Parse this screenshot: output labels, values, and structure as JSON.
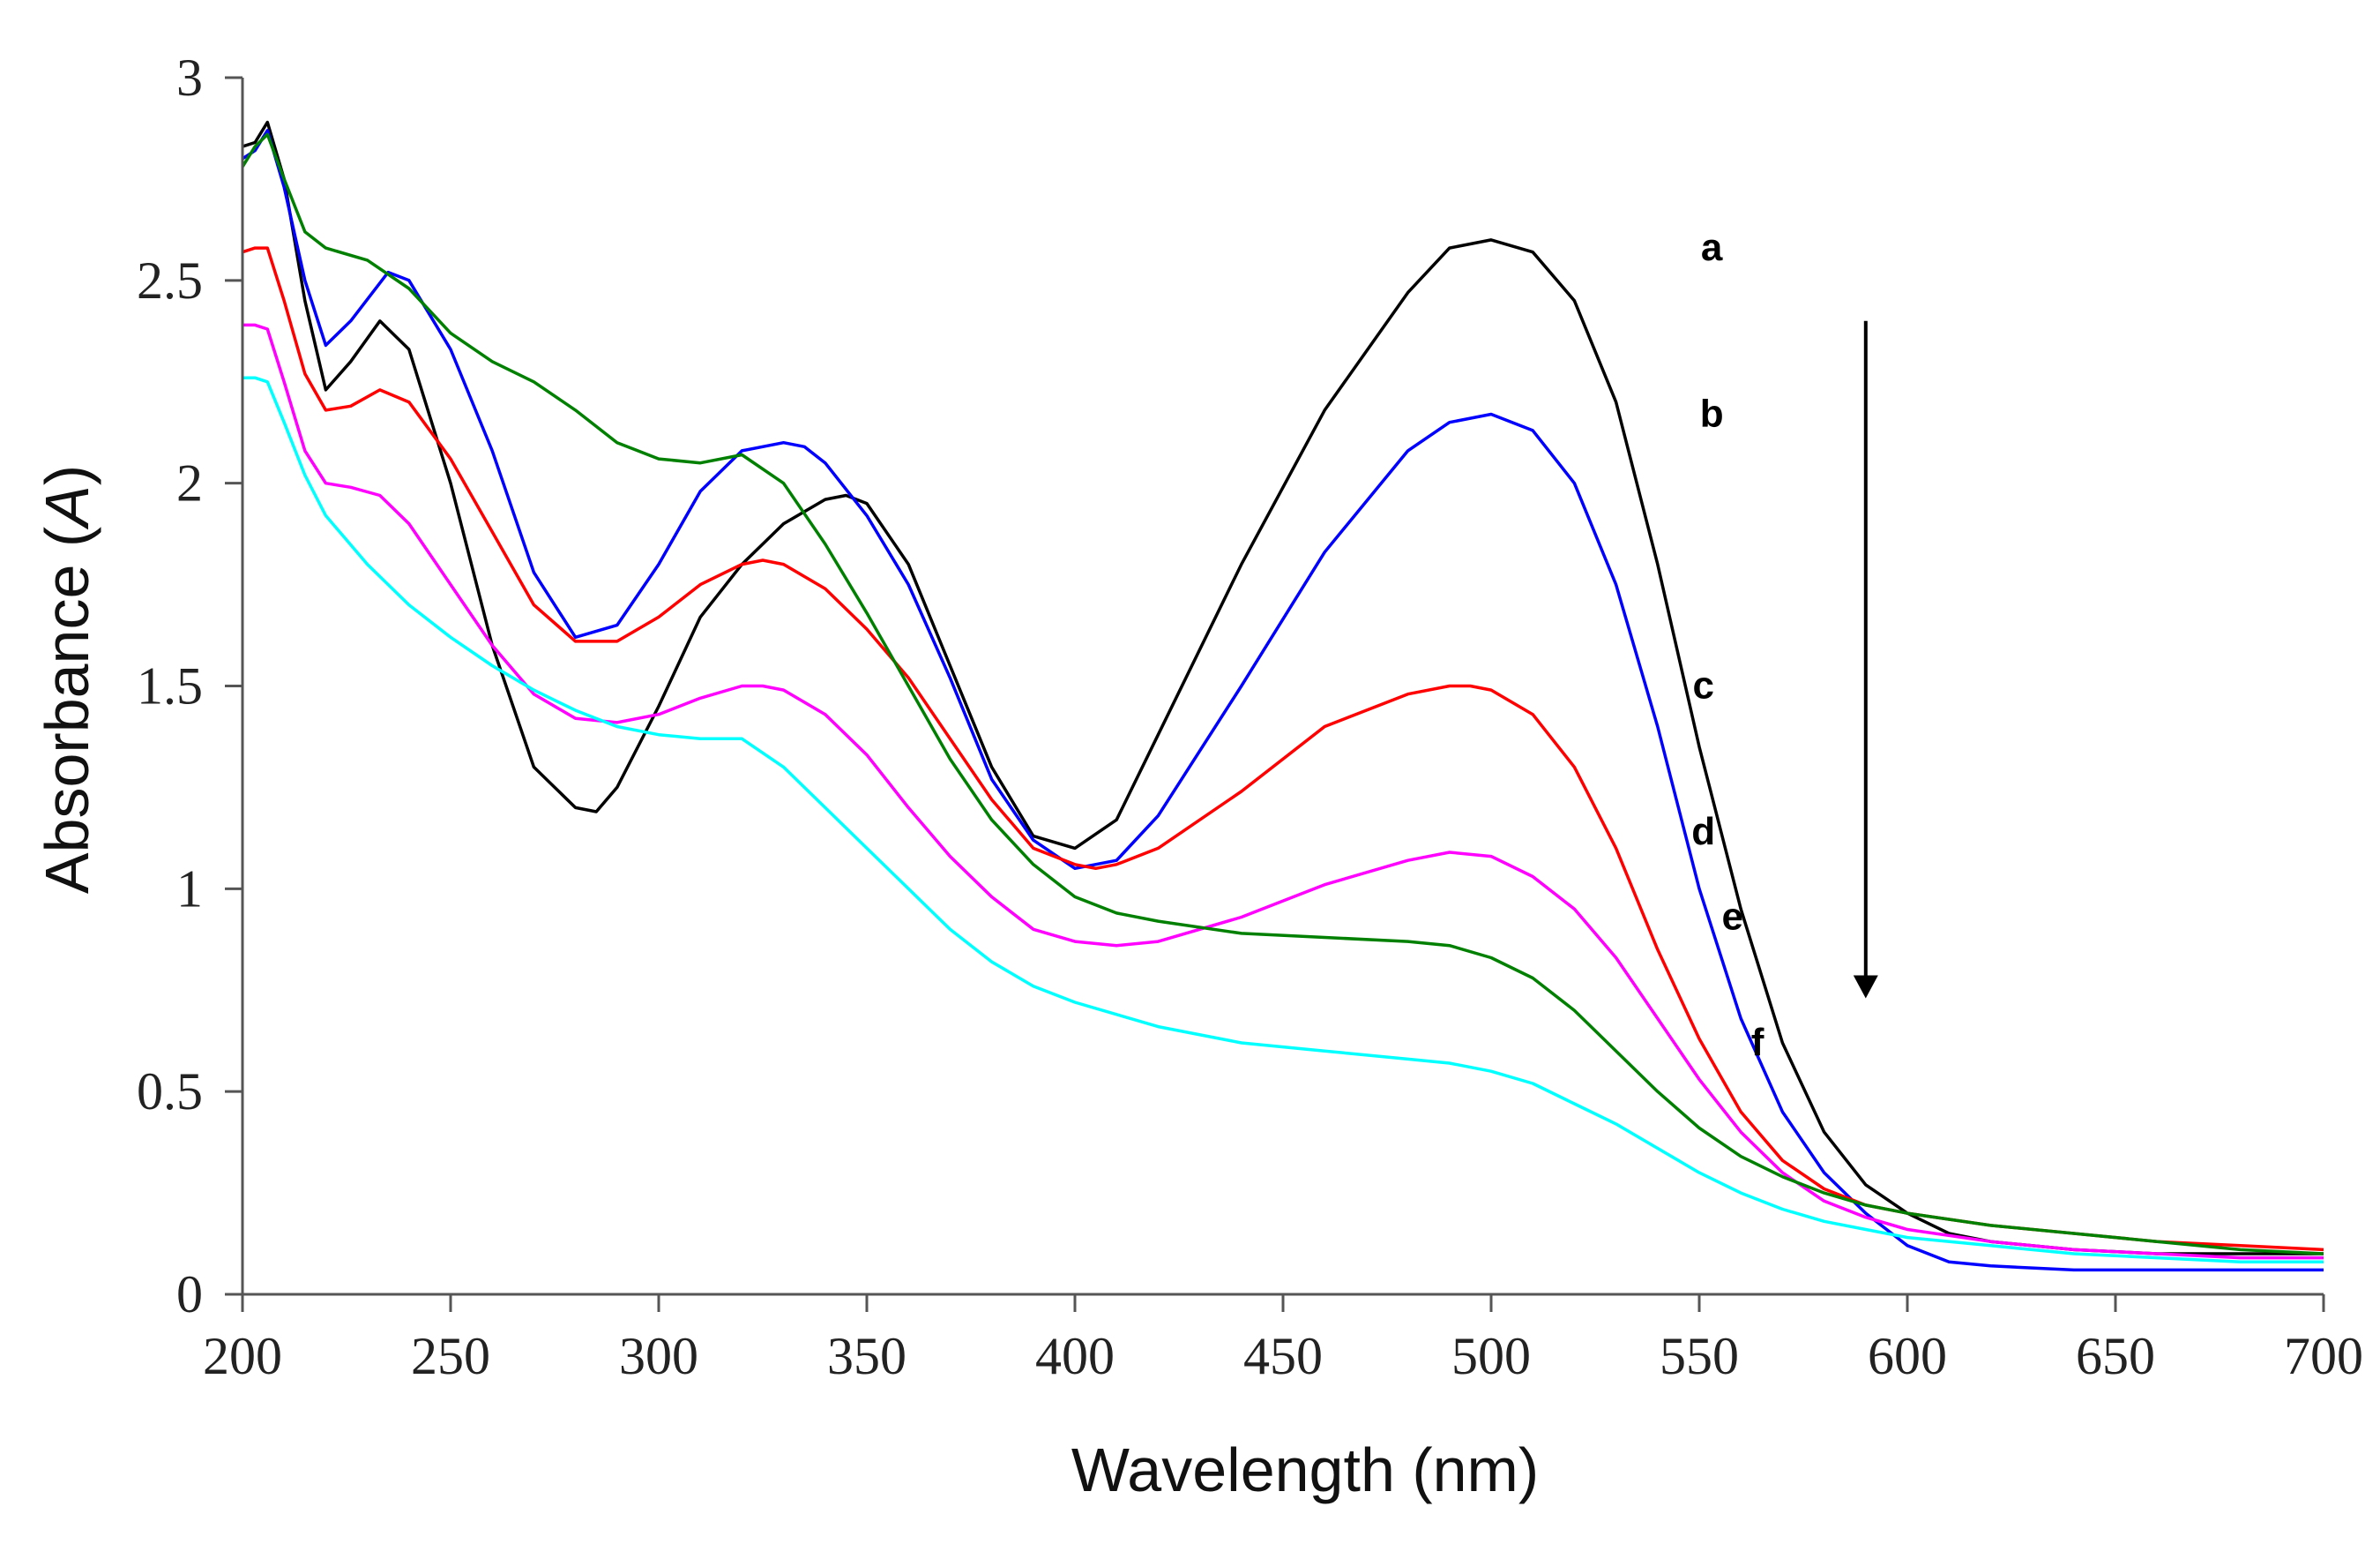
{
  "chart_data": {
    "type": "line",
    "title": "",
    "xlabel": "Wavelength (nm)",
    "ylabel_main": "Absorbance (",
    "ylabel_italic": "A",
    "ylabel_close": ")",
    "xlim": [
      200,
      700
    ],
    "ylim": [
      0,
      3
    ],
    "x_ticks": [
      200,
      250,
      300,
      350,
      400,
      450,
      500,
      550,
      600,
      650,
      700
    ],
    "y_ticks": [
      {
        "value": 0,
        "label": "0"
      },
      {
        "value": 0.5,
        "label": "0.5"
      },
      {
        "value": 1,
        "label": "1"
      },
      {
        "value": 1.5,
        "label": "1.5"
      },
      {
        "value": 2,
        "label": "2"
      },
      {
        "value": 2.5,
        "label": "2.5"
      },
      {
        "value": 3,
        "label": "3"
      }
    ],
    "grid": false,
    "legend": "none",
    "arrow": {
      "direction": "down",
      "x": 590,
      "y_start": 2.4,
      "y_end": 0.73
    },
    "series": [
      {
        "name": "a",
        "color": "#000000",
        "label_at": [
          553,
          2.55
        ],
        "x": [
          200,
          203,
          206,
          210,
          215,
          220,
          226,
          233,
          240,
          250,
          260,
          270,
          280,
          285,
          290,
          300,
          310,
          320,
          330,
          340,
          345,
          350,
          360,
          370,
          380,
          390,
          400,
          410,
          420,
          440,
          460,
          480,
          490,
          500,
          510,
          520,
          530,
          540,
          550,
          560,
          570,
          580,
          590,
          600,
          610,
          620,
          640,
          660,
          680,
          700
        ],
        "y": [
          2.83,
          2.84,
          2.89,
          2.75,
          2.45,
          2.23,
          2.3,
          2.4,
          2.33,
          2.0,
          1.6,
          1.3,
          1.2,
          1.19,
          1.25,
          1.45,
          1.67,
          1.8,
          1.9,
          1.96,
          1.97,
          1.95,
          1.8,
          1.55,
          1.3,
          1.13,
          1.1,
          1.17,
          1.38,
          1.8,
          2.18,
          2.47,
          2.58,
          2.6,
          2.57,
          2.45,
          2.2,
          1.8,
          1.35,
          0.95,
          0.62,
          0.4,
          0.27,
          0.2,
          0.15,
          0.13,
          0.11,
          0.1,
          0.1,
          0.1
        ]
      },
      {
        "name": "b",
        "color": "#0000ff",
        "label_at": [
          553,
          2.14
        ],
        "x": [
          200,
          203,
          206,
          210,
          215,
          220,
          226,
          235,
          240,
          250,
          260,
          270,
          280,
          290,
          300,
          310,
          320,
          330,
          335,
          340,
          350,
          360,
          370,
          380,
          390,
          400,
          410,
          420,
          440,
          460,
          480,
          490,
          500,
          510,
          520,
          530,
          540,
          550,
          560,
          570,
          580,
          590,
          600,
          610,
          620,
          640,
          660,
          680,
          700
        ],
        "y": [
          2.8,
          2.82,
          2.87,
          2.73,
          2.5,
          2.34,
          2.4,
          2.52,
          2.5,
          2.33,
          2.08,
          1.78,
          1.62,
          1.65,
          1.8,
          1.98,
          2.08,
          2.1,
          2.09,
          2.05,
          1.92,
          1.75,
          1.52,
          1.27,
          1.12,
          1.05,
          1.07,
          1.18,
          1.5,
          1.83,
          2.08,
          2.15,
          2.17,
          2.13,
          2.0,
          1.75,
          1.4,
          1.0,
          0.68,
          0.45,
          0.3,
          0.2,
          0.12,
          0.08,
          0.07,
          0.06,
          0.06,
          0.06,
          0.06
        ]
      },
      {
        "name": "c",
        "color": "#ff0000",
        "label_at": [
          551,
          1.47
        ],
        "x": [
          200,
          203,
          206,
          210,
          215,
          220,
          226,
          233,
          240,
          250,
          260,
          270,
          280,
          290,
          300,
          310,
          320,
          325,
          330,
          340,
          350,
          360,
          370,
          380,
          390,
          400,
          405,
          410,
          420,
          440,
          460,
          480,
          490,
          495,
          500,
          510,
          520,
          530,
          540,
          550,
          560,
          570,
          580,
          590,
          600,
          620,
          640,
          660,
          680,
          700
        ],
        "y": [
          2.57,
          2.58,
          2.58,
          2.45,
          2.27,
          2.18,
          2.19,
          2.23,
          2.2,
          2.06,
          1.88,
          1.7,
          1.61,
          1.61,
          1.67,
          1.75,
          1.8,
          1.81,
          1.8,
          1.74,
          1.64,
          1.52,
          1.37,
          1.22,
          1.1,
          1.06,
          1.05,
          1.06,
          1.1,
          1.24,
          1.4,
          1.48,
          1.5,
          1.5,
          1.49,
          1.43,
          1.3,
          1.1,
          0.85,
          0.63,
          0.45,
          0.33,
          0.26,
          0.22,
          0.2,
          0.17,
          0.15,
          0.13,
          0.12,
          0.11
        ]
      },
      {
        "name": "d",
        "color": "#ff00ff",
        "label_at": [
          551,
          1.11
        ],
        "x": [
          200,
          203,
          206,
          210,
          215,
          220,
          226,
          233,
          240,
          250,
          260,
          270,
          280,
          290,
          300,
          310,
          320,
          325,
          330,
          340,
          350,
          360,
          370,
          380,
          390,
          400,
          410,
          420,
          440,
          460,
          480,
          490,
          500,
          510,
          520,
          530,
          540,
          550,
          560,
          570,
          580,
          590,
          600,
          620,
          640,
          660,
          680,
          700
        ],
        "y": [
          2.39,
          2.39,
          2.38,
          2.25,
          2.08,
          2.0,
          1.99,
          1.97,
          1.9,
          1.75,
          1.6,
          1.48,
          1.42,
          1.41,
          1.43,
          1.47,
          1.5,
          1.5,
          1.49,
          1.43,
          1.33,
          1.2,
          1.08,
          0.98,
          0.9,
          0.87,
          0.86,
          0.87,
          0.93,
          1.01,
          1.07,
          1.09,
          1.08,
          1.03,
          0.95,
          0.83,
          0.68,
          0.53,
          0.4,
          0.3,
          0.23,
          0.19,
          0.16,
          0.13,
          0.11,
          0.1,
          0.09,
          0.09
        ]
      },
      {
        "name": "e",
        "color": "#008000",
        "label_at": [
          558,
          0.9
        ],
        "x": [
          200,
          203,
          206,
          210,
          215,
          220,
          230,
          240,
          250,
          260,
          270,
          280,
          290,
          300,
          310,
          320,
          330,
          340,
          350,
          360,
          370,
          380,
          390,
          400,
          410,
          420,
          440,
          460,
          480,
          490,
          500,
          510,
          520,
          530,
          540,
          550,
          560,
          570,
          580,
          590,
          600,
          620,
          640,
          660,
          680,
          700
        ],
        "y": [
          2.78,
          2.83,
          2.86,
          2.75,
          2.62,
          2.58,
          2.55,
          2.48,
          2.37,
          2.3,
          2.25,
          2.18,
          2.1,
          2.06,
          2.05,
          2.07,
          2.0,
          1.85,
          1.68,
          1.5,
          1.32,
          1.17,
          1.06,
          0.98,
          0.94,
          0.92,
          0.89,
          0.88,
          0.87,
          0.86,
          0.83,
          0.78,
          0.7,
          0.6,
          0.5,
          0.41,
          0.34,
          0.29,
          0.25,
          0.22,
          0.2,
          0.17,
          0.15,
          0.13,
          0.11,
          0.1
        ]
      },
      {
        "name": "f",
        "color": "#00ffff",
        "label_at": [
          564,
          0.59
        ],
        "x": [
          200,
          203,
          206,
          210,
          215,
          220,
          230,
          240,
          250,
          260,
          270,
          280,
          290,
          300,
          310,
          320,
          330,
          340,
          350,
          360,
          370,
          380,
          390,
          400,
          420,
          440,
          460,
          480,
          490,
          500,
          510,
          520,
          530,
          540,
          550,
          560,
          570,
          580,
          590,
          600,
          620,
          640,
          660,
          680,
          700
        ],
        "y": [
          2.26,
          2.26,
          2.25,
          2.15,
          2.02,
          1.92,
          1.8,
          1.7,
          1.62,
          1.55,
          1.49,
          1.44,
          1.4,
          1.38,
          1.37,
          1.37,
          1.3,
          1.2,
          1.1,
          1.0,
          0.9,
          0.82,
          0.76,
          0.72,
          0.66,
          0.62,
          0.6,
          0.58,
          0.57,
          0.55,
          0.52,
          0.47,
          0.42,
          0.36,
          0.3,
          0.25,
          0.21,
          0.18,
          0.16,
          0.14,
          0.12,
          0.1,
          0.09,
          0.08,
          0.08
        ]
      }
    ]
  }
}
